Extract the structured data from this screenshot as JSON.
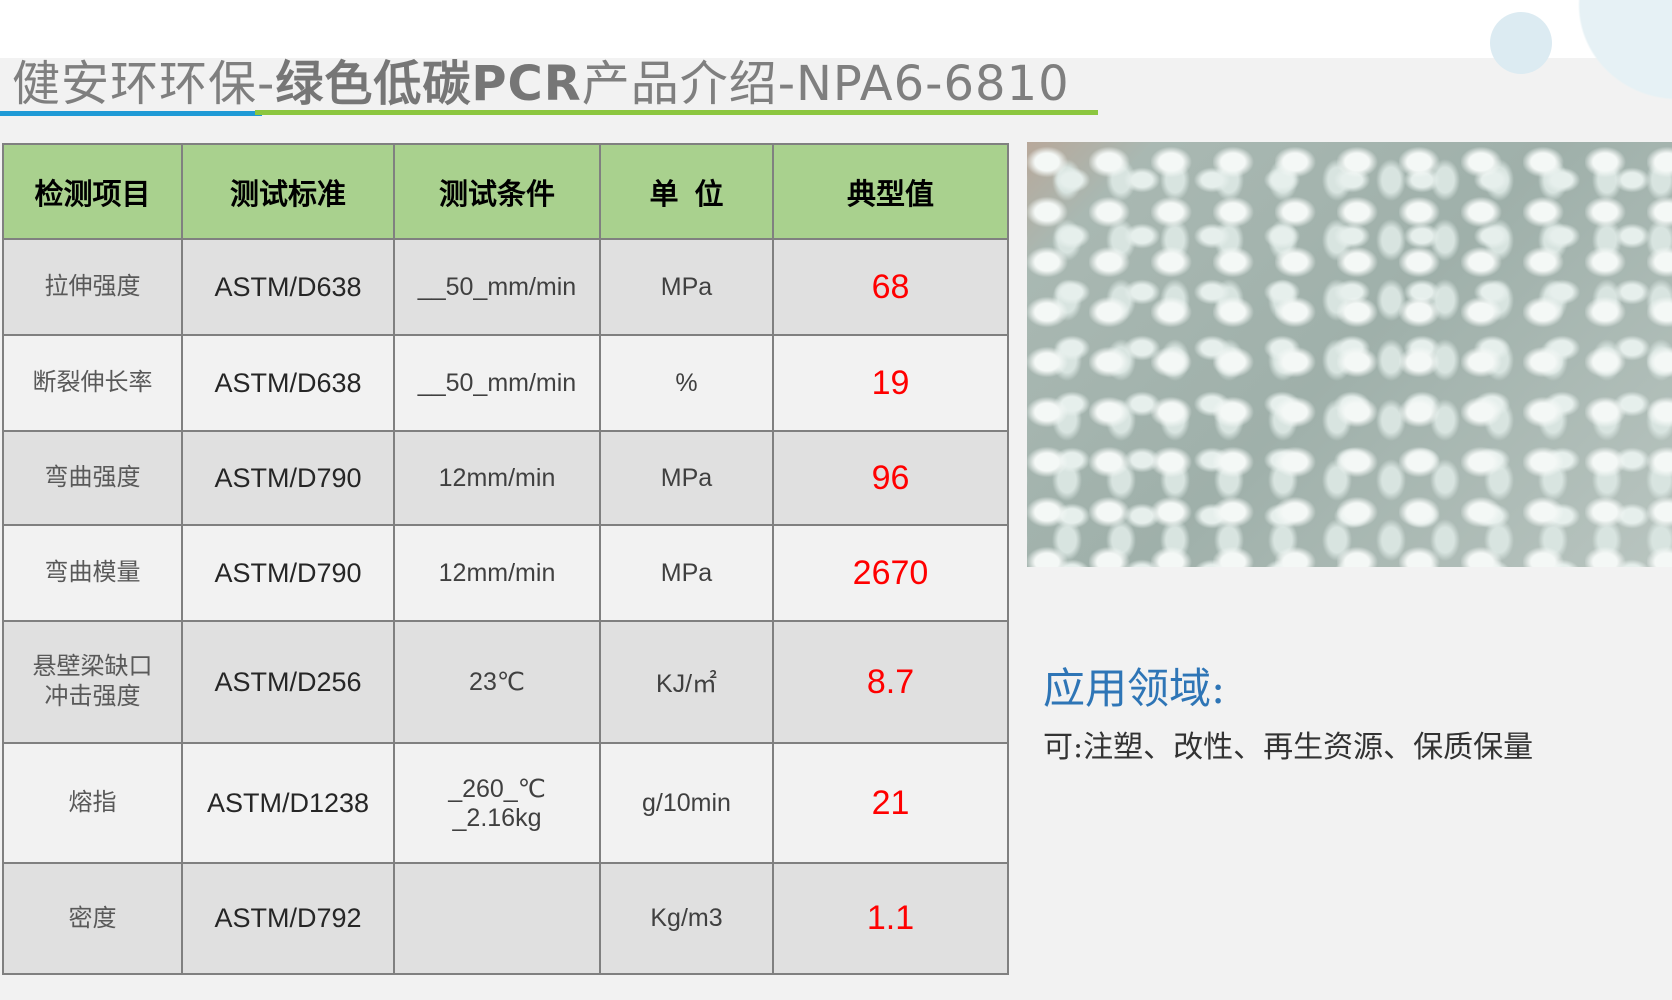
{
  "title": {
    "normal_prefix": "健安环环保-",
    "bold": "绿色低碳PCR",
    "normal_suffix": "产品介绍-NPA6-6810"
  },
  "colors": {
    "accent_blue": "#1f9ad6",
    "accent_green": "#8cc63f",
    "header_bg": "#a9d18e",
    "value_red": "#ff0000"
  },
  "table": {
    "headers": [
      "检测项目",
      "测试标准",
      "测试条件",
      "单  位",
      "典型值"
    ],
    "rows": [
      {
        "item": "拉伸强度",
        "standard": "ASTM/D638",
        "condition": "__50_mm/min",
        "unit": "MPa",
        "value": "68"
      },
      {
        "item": "断裂伸长率",
        "standard": "ASTM/D638",
        "condition": "__50_mm/min",
        "unit": "%",
        "value": "19"
      },
      {
        "item": "弯曲强度",
        "standard": "ASTM/D790",
        "condition": "12mm/min",
        "unit": "MPa",
        "value": "96"
      },
      {
        "item": "弯曲模量",
        "standard": "ASTM/D790",
        "condition": "12mm/min",
        "unit": "MPa",
        "value": "2670"
      },
      {
        "item": "悬壁梁缺口\n冲击强度",
        "standard": "ASTM/D256",
        "condition": "23℃",
        "unit": "KJ/㎡",
        "value": "8.7"
      },
      {
        "item": "熔指",
        "standard": "ASTM/D1238",
        "condition": "_260_℃\n_2.16kg",
        "unit": "g/10min",
        "value": "21"
      },
      {
        "item": "密度",
        "standard": "ASTM/D792",
        "condition": "",
        "unit": "Kg/m3",
        "value": "1.1"
      }
    ]
  },
  "application": {
    "heading": "应用领域:",
    "text": "可:注塑、改性、再生资源、保质保量"
  }
}
